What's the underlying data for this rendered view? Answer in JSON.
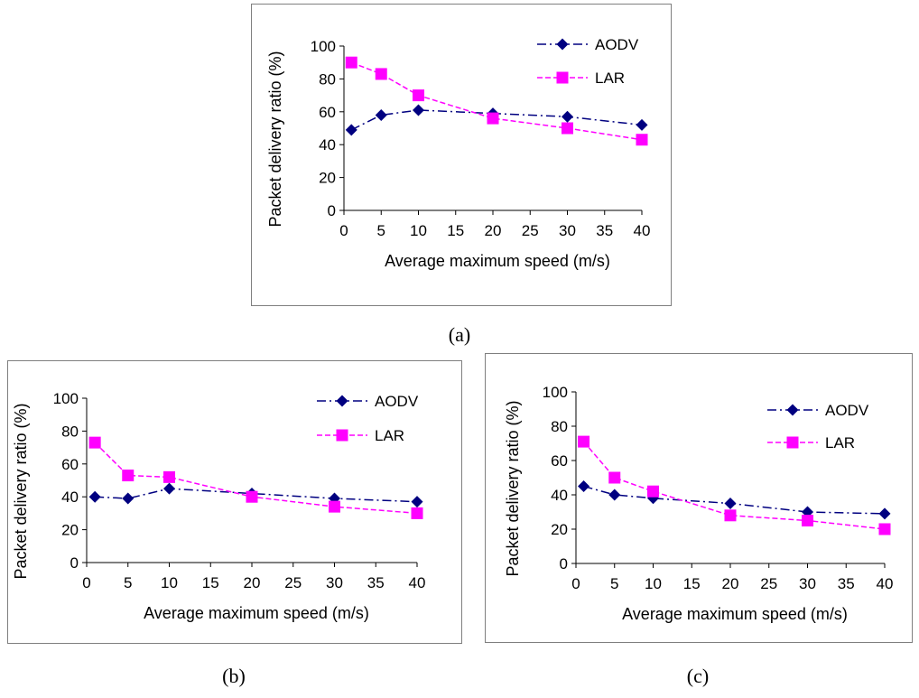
{
  "chart_data": [
    {
      "type": "line",
      "caption": "(a)",
      "xlabel": "Average maximum speed (m/s)",
      "ylabel": "Packet delivery ratio (%)",
      "xlim": [
        0,
        40
      ],
      "ylim": [
        0,
        100
      ],
      "xticks": [
        0,
        5,
        10,
        15,
        20,
        25,
        30,
        35,
        40
      ],
      "yticks": [
        0,
        20,
        40,
        60,
        80,
        100
      ],
      "legend": "top-right",
      "series": [
        {
          "name": "AODV",
          "color": "#000080",
          "marker": "diamond",
          "style": "dash-dot",
          "x": [
            1,
            5,
            10,
            20,
            30,
            40
          ],
          "values": [
            49,
            58,
            61,
            59,
            57,
            52
          ]
        },
        {
          "name": "LAR",
          "color": "#ff00ff",
          "marker": "square",
          "style": "dashed",
          "x": [
            1,
            5,
            10,
            20,
            30,
            40
          ],
          "values": [
            90,
            83,
            70,
            56,
            50,
            43
          ]
        }
      ]
    },
    {
      "type": "line",
      "caption": "(b)",
      "xlabel": "Average maximum speed (m/s)",
      "ylabel": "Packet delivery ratio (%)",
      "xlim": [
        0,
        40
      ],
      "ylim": [
        0,
        100
      ],
      "xticks": [
        0,
        5,
        10,
        15,
        20,
        25,
        30,
        35,
        40
      ],
      "yticks": [
        0,
        20,
        40,
        60,
        80,
        100
      ],
      "legend": "top-right",
      "series": [
        {
          "name": "AODV",
          "color": "#000080",
          "marker": "diamond",
          "style": "dash-dot",
          "x": [
            1,
            5,
            10,
            20,
            30,
            40
          ],
          "values": [
            40,
            39,
            45,
            42,
            39,
            37
          ]
        },
        {
          "name": "LAR",
          "color": "#ff00ff",
          "marker": "square",
          "style": "dashed",
          "x": [
            1,
            5,
            10,
            20,
            30,
            40
          ],
          "values": [
            73,
            53,
            52,
            40,
            34,
            30
          ]
        }
      ]
    },
    {
      "type": "line",
      "caption": "(c)",
      "xlabel": "Average maximum  speed (m/s)",
      "ylabel": "Packet delivery ratio (%)",
      "xlim": [
        0,
        40
      ],
      "ylim": [
        0,
        100
      ],
      "xticks": [
        0,
        5,
        10,
        15,
        20,
        25,
        30,
        35,
        40
      ],
      "yticks": [
        0,
        20,
        40,
        60,
        80,
        100
      ],
      "legend": "top-right",
      "series": [
        {
          "name": "AODV",
          "color": "#000080",
          "marker": "diamond",
          "style": "dash-dot",
          "x": [
            1,
            5,
            10,
            20,
            30,
            40
          ],
          "values": [
            45,
            40,
            38,
            35,
            30,
            29
          ]
        },
        {
          "name": "LAR",
          "color": "#ff00ff",
          "marker": "square",
          "style": "dashed",
          "x": [
            1,
            5,
            10,
            20,
            30,
            40
          ],
          "values": [
            71,
            50,
            42,
            28,
            25,
            20
          ]
        }
      ]
    }
  ]
}
